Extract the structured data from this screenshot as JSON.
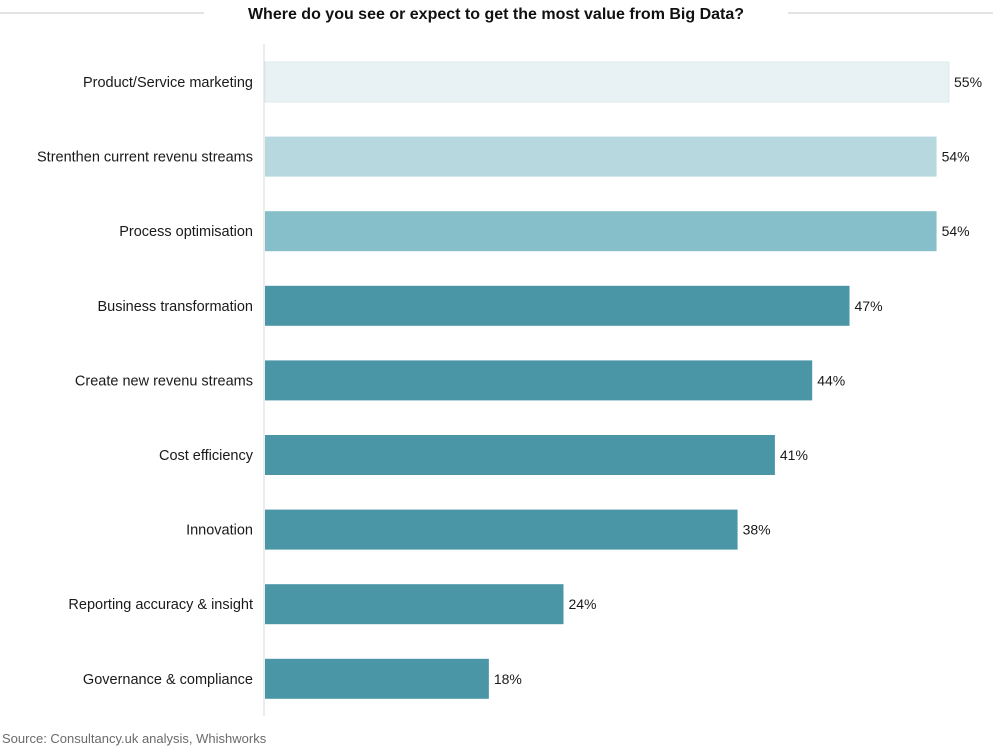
{
  "chart_data": {
    "type": "bar",
    "orientation": "horizontal",
    "title": "Where do you see or expect to get the most value from Big Data?",
    "categories": [
      "Product/Service marketing",
      "Strenthen current revenu streams",
      "Process optimisation",
      "Business transformation",
      "Create new revenu streams",
      "Cost efficiency",
      "Innovation",
      "Reporting accuracy & insight",
      "Governance & compliance"
    ],
    "values": [
      55,
      54,
      54,
      47,
      44,
      41,
      38,
      24,
      18
    ],
    "value_labels": [
      "55%",
      "54%",
      "54%",
      "47%",
      "44%",
      "41%",
      "38%",
      "24%",
      "18%"
    ],
    "bar_colors": [
      "#e8f1f3",
      "#b7d8df",
      "#86bfca",
      "#4a95a6",
      "#4a95a6",
      "#4a95a6",
      "#4a95a6",
      "#4a95a6",
      "#4a95a6"
    ],
    "xlim": [
      0,
      55
    ],
    "xlabel": "",
    "ylabel": "",
    "grid": false,
    "legend": "none"
  },
  "footer": {
    "source": "Source: Consultancy.uk analysis, Whishworks"
  },
  "colors": {
    "title_rule": "#c8c8c8",
    "axis_line": "#d9d9d9",
    "source_text": "#6b6b6b"
  }
}
